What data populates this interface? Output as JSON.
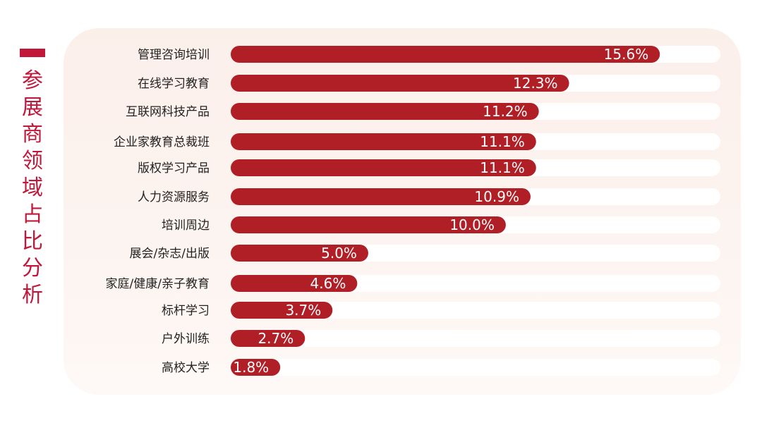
{
  "title": "参展商领域占比分析",
  "colors": {
    "accent": "#c0173a",
    "bar": "#b01e26",
    "track": "#ffffff",
    "card": "#fbefea"
  },
  "chart_data": {
    "type": "bar",
    "orientation": "horizontal",
    "title": "参展商领域占比分析",
    "categories": [
      "管理咨询培训",
      "在线学习教育",
      "互联网科技产品",
      "企业家教育总裁班",
      "版权学习产品",
      "人力资源服务",
      "培训周边",
      "展会/杂志/出版",
      "家庭/健康/亲子教育",
      "标杆学习",
      "户外训练",
      "高校大学"
    ],
    "values": [
      15.6,
      12.3,
      11.2,
      11.1,
      11.1,
      10.9,
      10.0,
      5.0,
      4.6,
      3.7,
      2.7,
      1.8
    ],
    "labels": [
      "15.6%",
      "12.3%",
      "11.2%",
      "11.1%",
      "11.1%",
      "10.9%",
      "10.0%",
      "5.0%",
      "4.6%",
      "3.7%",
      "2.7%",
      "1.8%"
    ],
    "unit": "%",
    "xlim": [
      0,
      17.8
    ],
    "grid": false,
    "legend": "none"
  }
}
